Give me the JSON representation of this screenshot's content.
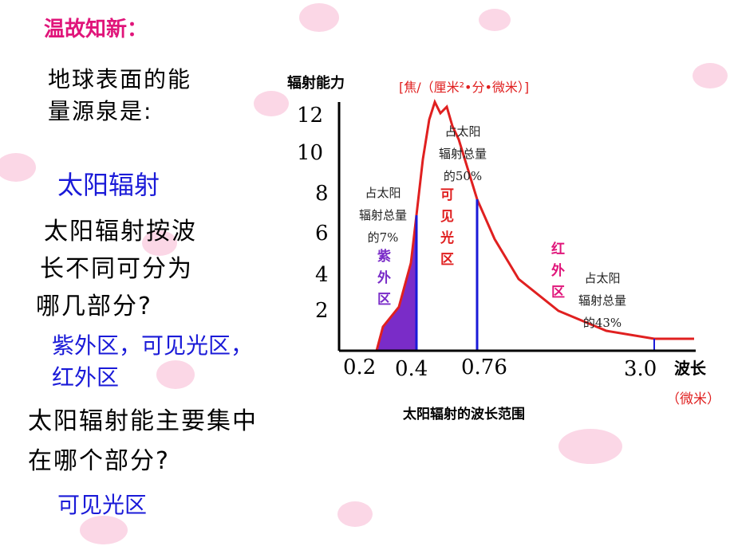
{
  "heading": "温故知新：",
  "q1": [
    "地球表面的能",
    "量源泉是:"
  ],
  "a1": "太阳辐射",
  "q2": [
    "太阳辐射按波",
    "长不同可分为",
    "哪几部分?"
  ],
  "a2": [
    "紫外区，可见光区，",
    "红外区"
  ],
  "q3": [
    "太阳辐射能主要集中",
    "在哪个部分?"
  ],
  "a3": "可见光区",
  "figure": {
    "y_label": "辐射能力",
    "y_unit": "[焦/（厘米²•分•微米）]",
    "y_ticks": [
      "12",
      "10",
      "8",
      "6",
      "4",
      "2"
    ],
    "x_ticks": [
      "0.2",
      "0.4",
      "0.76",
      "3.0"
    ],
    "x_label": "波长",
    "x_unit": "（微米）",
    "caption": "太阳辐射的波长范围",
    "regions": [
      {
        "name": "紫外区",
        "share": [
          "占太阳",
          "辐射总量",
          "的7%"
        ]
      },
      {
        "name": "可见光区",
        "share": [
          "占太阳",
          "辐射总量",
          "的50%"
        ]
      },
      {
        "name": "红外区",
        "share": [
          "占太阳",
          "辐射总量",
          "的43%"
        ]
      }
    ]
  }
}
